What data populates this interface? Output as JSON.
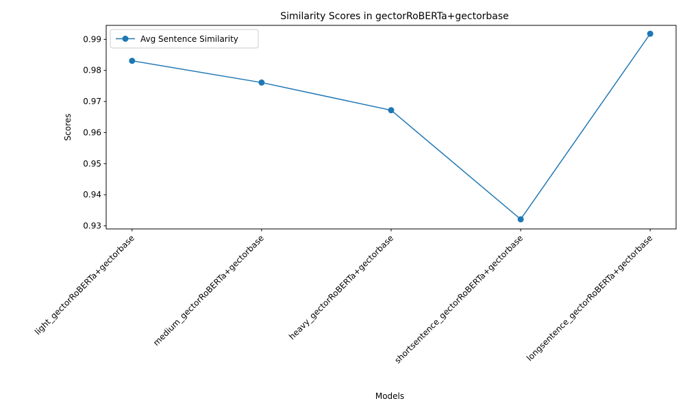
{
  "chart_data": {
    "type": "line",
    "title": "Similarity Scores in gectorRoBERTa+gectorbase",
    "xlabel": "Models",
    "ylabel": "Scores",
    "categories": [
      "light_gectorRoBERTa+gectorbase",
      "medium_gectorRoBERTa+gectorbase",
      "heavy_gectorRoBERTa+gectorbase",
      "shortsentence_gectorRoBERTa+gectorbase",
      "longsentence_gectorRoBERTa+gectorbase"
    ],
    "series": [
      {
        "name": "Avg Sentence Similarity",
        "values": [
          0.9831,
          0.9761,
          0.9672,
          0.9321,
          0.9918
        ],
        "color": "#1f77b4",
        "marker": "circle"
      }
    ],
    "ylim": [
      0.929,
      0.9945
    ],
    "yticks": [
      "0.93",
      "0.94",
      "0.95",
      "0.96",
      "0.97",
      "0.98",
      "0.99"
    ],
    "ytick_values": [
      0.93,
      0.94,
      0.95,
      0.96,
      0.97,
      0.98,
      0.99
    ],
    "grid": false,
    "legend_position": "top-left"
  }
}
